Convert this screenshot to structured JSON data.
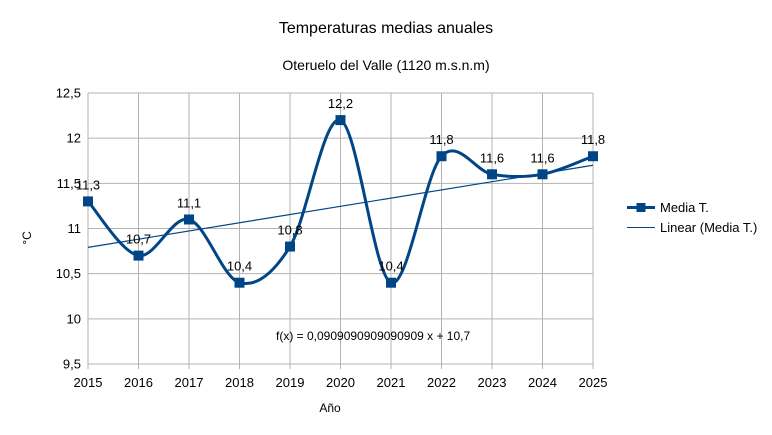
{
  "chart_data": {
    "type": "line",
    "title": "Temperaturas medias anuales",
    "subtitle": "Oteruelo del Valle (1120 m.s.n.m)",
    "xlabel": "Año",
    "ylabel": "°C",
    "categories": [
      "2015",
      "2016",
      "2017",
      "2018",
      "2019",
      "2020",
      "2021",
      "2022",
      "2023",
      "2024",
      "2025"
    ],
    "series": [
      {
        "name": "Media T.",
        "values": [
          11.3,
          10.7,
          11.1,
          10.4,
          10.8,
          12.2,
          10.4,
          11.8,
          11.6,
          11.6,
          11.8
        ],
        "data_labels": [
          "11,3",
          "10,7",
          "11,1",
          "10,4",
          "10,8",
          "12,2",
          "10,4",
          "11,8",
          "11,6",
          "11,6",
          "11,8"
        ],
        "color": "#004586",
        "smooth": true,
        "marker": "square"
      }
    ],
    "trendline": {
      "name": "Linear (Media T.)",
      "equation": "f(x) = 0,0909090909090909 x + 10,7",
      "slope": 0.0909090909090909,
      "intercept": 10.7,
      "color": "#004586"
    },
    "ylim": [
      9.5,
      12.5
    ],
    "yticks": [
      9.5,
      10,
      10.5,
      11,
      11.5,
      12,
      12.5
    ],
    "ytick_labels": [
      "9,5",
      "10",
      "10,5",
      "11",
      "11,5",
      "12",
      "12,5"
    ],
    "grid": true,
    "legend_position": "right"
  }
}
